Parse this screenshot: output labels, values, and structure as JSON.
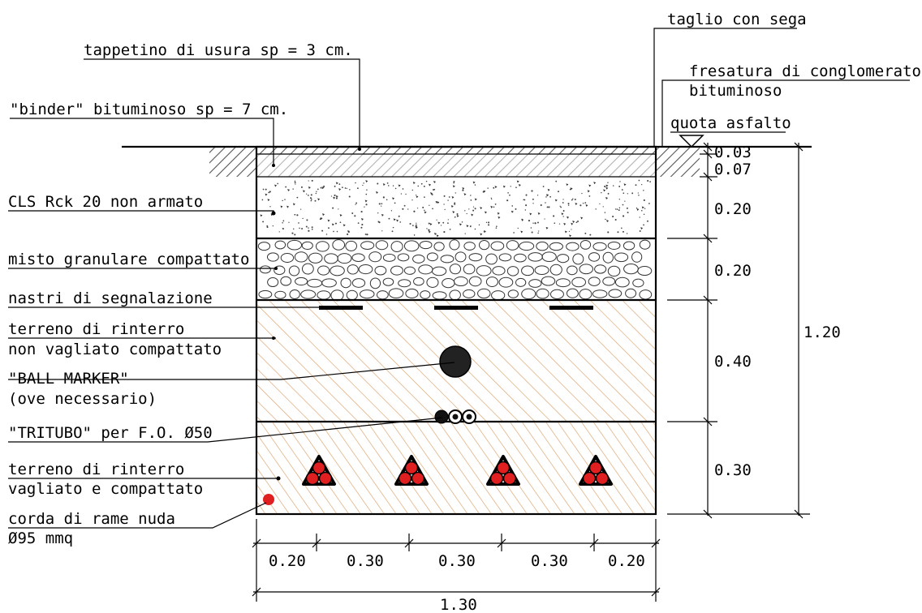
{
  "colors": {
    "line": "#000000",
    "soil_hatch": "#d8a068",
    "cable_red": "#e02020",
    "asphalt_hatch": "#555555",
    "gravel": "#333333"
  },
  "labels": {
    "saw_cut": "taglio con sega",
    "wear_layer": "tappetino di usura sp = 3 cm.",
    "milling_1": "fresatura di conglomerato",
    "milling_2": "bituminoso",
    "binder": "\"binder\" bituminoso sp = 7 cm.",
    "asphalt_level": "quota asfalto",
    "concrete": "CLS Rck 20 non armato",
    "gravel": "misto granulare compattato",
    "warning_tapes": "nastri di segnalazione",
    "backfill_1a": "terreno di rinterro",
    "backfill_1b": "non vagliato compattato",
    "ball_marker_1": "\"BALL MARKER\"",
    "ball_marker_2": "(ove necessario)",
    "tritubo": "\"TRITUBO\" per F.O. Ø50",
    "backfill_2a": "terreno di rinterro",
    "backfill_2b": "vagliato e compattato",
    "copper_1": "corda di rame nuda",
    "copper_2": "Ø95 mmq"
  },
  "dimensions": {
    "top_1": "0.03",
    "top_2": "0.07",
    "concrete": "0.20",
    "gravel": "0.20",
    "backfill_upper": "0.40",
    "backfill_lower": "0.30",
    "total_depth": "1.20",
    "bottom": [
      "0.20",
      "0.30",
      "0.30",
      "0.30",
      "0.20"
    ],
    "total_width": "1.30"
  }
}
